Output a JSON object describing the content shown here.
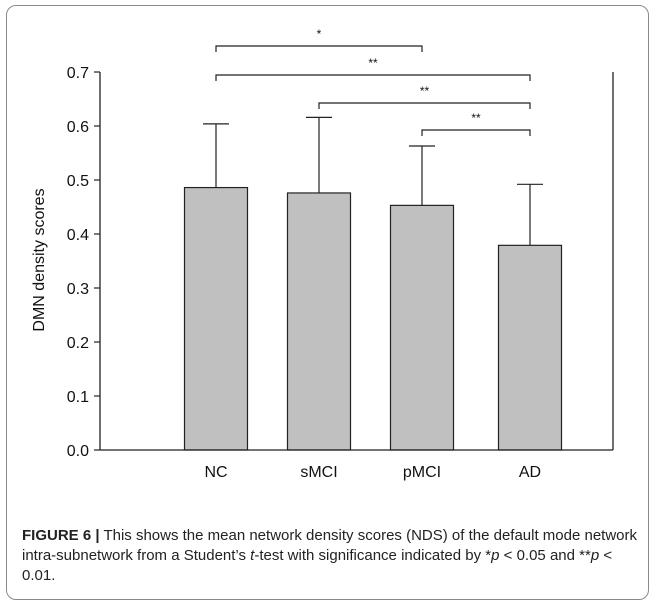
{
  "chart_data": {
    "type": "bar",
    "categories": [
      "NC",
      "sMCI",
      "pMCI",
      "AD"
    ],
    "values": [
      0.486,
      0.476,
      0.453,
      0.379
    ],
    "error_upper": [
      0.604,
      0.616,
      0.563,
      0.492
    ],
    "ylabel": "DMN density scores",
    "xlabel": "",
    "ylim": [
      0.0,
      0.7
    ],
    "yticks": [
      "0.0",
      "0.1",
      "0.2",
      "0.3",
      "0.4",
      "0.5",
      "0.6",
      "0.7"
    ],
    "bar_color": "#c0c0c0",
    "grid": false,
    "significance": [
      {
        "from": "NC",
        "to": "pMCI",
        "label": "*"
      },
      {
        "from": "NC",
        "to": "AD",
        "label": "**"
      },
      {
        "from": "sMCI",
        "to": "AD",
        "label": "**"
      },
      {
        "from": "pMCI",
        "to": "AD",
        "label": "**"
      }
    ]
  },
  "caption": {
    "figure_label": "FIGURE 6 |",
    "text_1": " This shows the mean network density scores (NDS) of the default mode network intra-subnetwork from a Student’s ",
    "text_t": "t",
    "text_2": "-test with significance indicated by *",
    "p1": "p",
    "text_3": " < 0.05 and **",
    "p2": "p",
    "text_4": " < 0.01."
  }
}
